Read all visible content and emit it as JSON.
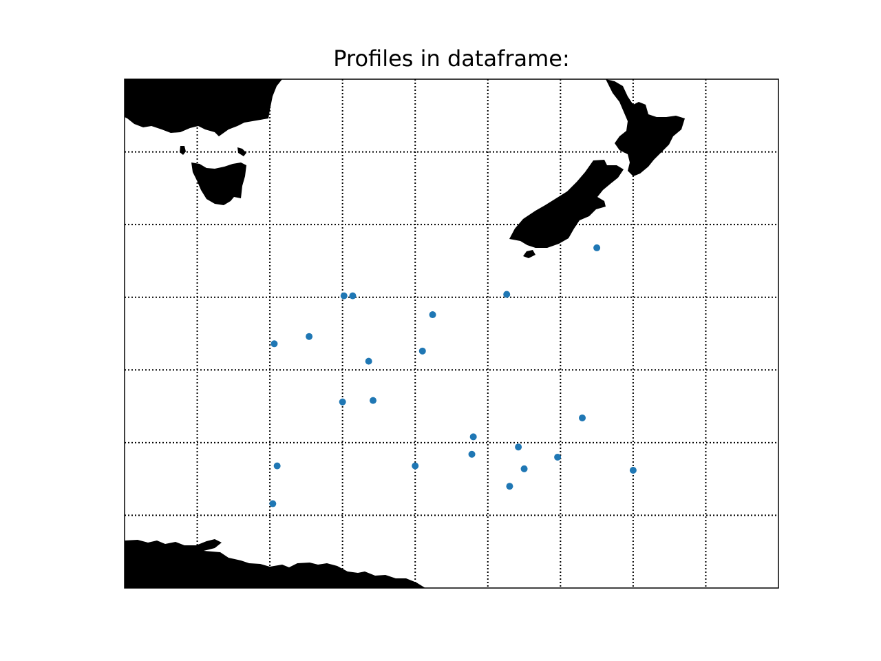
{
  "title": "Profiles in dataframe:",
  "map": {
    "projection": "geographic",
    "land_color": "#000000",
    "ocean_color": "#ffffff",
    "graticule": "dotted",
    "lon_range": [
      140,
      185
    ],
    "lat_range": [
      -67,
      -32
    ],
    "graticule_lons": [
      145,
      150,
      155,
      160,
      165,
      170,
      175,
      180
    ],
    "graticule_lats": [
      -37,
      -42,
      -47,
      -52,
      -57,
      -62
    ],
    "landmasses": [
      "Australia",
      "Tasmania",
      "New Zealand North Island",
      "New Zealand South Island",
      "Stewart Island",
      "Antarctica"
    ]
  },
  "profiles": {
    "color": "#1f77b4",
    "lon": [
      172.5,
      166.3,
      155.1,
      155.7,
      161.2,
      152.7,
      150.3,
      160.5,
      156.8,
      155.0,
      157.1,
      164.0,
      171.5,
      163.9,
      150.5,
      160.0,
      167.1,
      169.8,
      167.5,
      175.0,
      150.2,
      166.5
    ],
    "lat": [
      -43.6,
      -46.8,
      -46.9,
      -46.9,
      -48.2,
      -49.7,
      -50.2,
      -50.7,
      -51.4,
      -54.2,
      -54.1,
      -56.6,
      -55.3,
      -57.8,
      -58.6,
      -58.6,
      -57.3,
      -58.0,
      -58.8,
      -58.9,
      -61.2,
      -60.0
    ]
  }
}
